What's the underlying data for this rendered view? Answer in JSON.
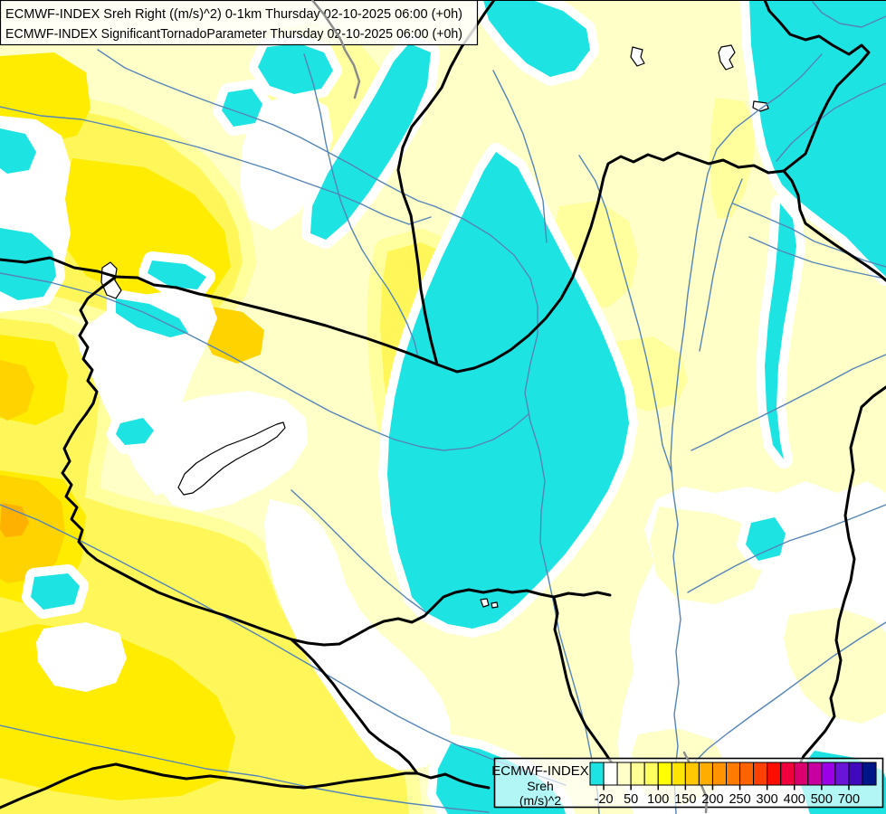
{
  "title_box": {
    "line1": "ECMWF-INDEX Sreh Right ((m/s)^2) 0-1km Thursday 02-10-2025 06:00 (+0h)",
    "line2": "ECMWF-INDEX SignificantTornadoParameter Thursday 02-10-2025 06:00 (+0h)"
  },
  "legend": {
    "product": "ECMWF-INDEX",
    "parameter": "Sreh",
    "units": "(m/s)^2",
    "tick_labels": [
      "-20",
      "50",
      "100",
      "150",
      "200",
      "250",
      "300",
      "400",
      "500",
      "700"
    ],
    "labeled_boundaries": [
      1,
      3,
      5,
      7,
      9,
      11,
      13,
      15,
      17,
      19
    ],
    "scale_colors": [
      "#1EE3E3",
      "#FFFFFF",
      "#FFFFC8",
      "#FFFF96",
      "#FFFF5F",
      "#FFFF00",
      "#FFE400",
      "#FFC800",
      "#FFAE00",
      "#FF9400",
      "#FF7C00",
      "#FF6300",
      "#FF4000",
      "#FF0C00",
      "#F0003C",
      "#DC006E",
      "#C800A0",
      "#9B00E6",
      "#6A14D7",
      "#4109BE",
      "#001588"
    ]
  },
  "map": {
    "colors": {
      "cyan": "#1EE3E3",
      "white": "#FFFFFF",
      "cream": "#FFFFC8",
      "light_yellow": "#FFFF9E",
      "yellow": "#FFF75A",
      "yellow_core": "#FFEC00",
      "golden": "#FFD300",
      "orange": "#FFB100",
      "river": "#5585B8",
      "border": "#000000",
      "secondary_border": "#8C8C8C",
      "lake_fill": "#FFFFFF",
      "lake_outline": "#000000",
      "text": "#000000"
    }
  }
}
